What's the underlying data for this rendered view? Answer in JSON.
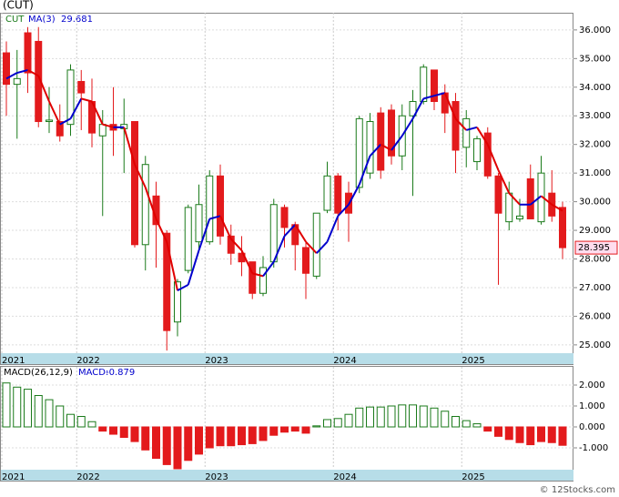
{
  "chart_data": [
    {
      "type": "candlestick",
      "title": "(CUT)",
      "symbol": "CUT",
      "categories": [
        "2021",
        null,
        null,
        null,
        null,
        null,
        null,
        "2022",
        null,
        null,
        null,
        null,
        null,
        null,
        null,
        null,
        null,
        null,
        null,
        "2023",
        null,
        null,
        null,
        null,
        null,
        null,
        null,
        null,
        null,
        null,
        null,
        "2024",
        null,
        null,
        null,
        null,
        null,
        null,
        null,
        null,
        null,
        null,
        null,
        "2025",
        null,
        null,
        null,
        null,
        null,
        null,
        null,
        null,
        null
      ],
      "open": [
        35.2,
        34.1,
        35.9,
        35.6,
        32.8,
        32.8,
        32.7,
        34.2,
        33.5,
        32.3,
        32.7,
        32.55,
        32.8,
        28.5,
        30.2,
        28.9,
        25.8,
        27.6,
        28.6,
        28.6,
        30.9,
        28.8,
        28.2,
        27.9,
        26.8,
        27.9,
        29.8,
        29.2,
        28.4,
        27.4,
        29.7,
        30.9,
        30.3,
        30.5,
        31.0,
        33.1,
        33.2,
        31.6,
        33.0,
        33.5,
        34.6,
        33.8,
        33.5,
        31.9,
        31.4,
        32.4,
        30.9,
        29.3,
        29.4,
        30.8,
        29.3,
        30.3,
        29.8
      ],
      "high": [
        35.6,
        35.3,
        36.1,
        36.1,
        34.0,
        33.4,
        34.8,
        34.6,
        34.3,
        33.2,
        34.0,
        33.6,
        32.8,
        31.6,
        30.7,
        29.0,
        27.3,
        29.9,
        30.6,
        31.1,
        31.3,
        29.2,
        28.8,
        27.9,
        28.1,
        30.1,
        29.9,
        29.3,
        28.6,
        29.6,
        31.4,
        31.0,
        30.7,
        33.0,
        33.1,
        33.3,
        33.4,
        33.4,
        33.9,
        34.8,
        34.6,
        34.1,
        33.8,
        33.2,
        32.3,
        32.6,
        31.0,
        30.7,
        30.1,
        31.3,
        31.6,
        31.1,
        30.0
      ],
      "low": [
        33.0,
        32.2,
        33.8,
        32.6,
        32.4,
        32.1,
        32.3,
        32.5,
        31.9,
        29.5,
        31.6,
        31.0,
        28.4,
        27.6,
        27.7,
        24.8,
        25.3,
        27.5,
        28.3,
        28.5,
        28.5,
        27.8,
        27.4,
        26.6,
        26.7,
        27.7,
        28.4,
        27.6,
        26.6,
        27.3,
        29.6,
        29.0,
        28.6,
        30.3,
        30.8,
        30.8,
        31.3,
        31.1,
        30.2,
        33.4,
        33.2,
        32.4,
        31.0,
        31.2,
        31.1,
        30.8,
        27.1,
        29.0,
        29.3,
        29.4,
        29.2,
        29.3,
        28.0
      ],
      "close": [
        34.1,
        34.3,
        34.5,
        32.8,
        32.85,
        32.3,
        34.6,
        33.8,
        32.4,
        32.7,
        32.5,
        32.7,
        28.5,
        31.3,
        29.2,
        25.5,
        27.2,
        29.8,
        29.9,
        30.9,
        28.8,
        28.2,
        27.9,
        26.8,
        27.7,
        29.9,
        29.1,
        28.5,
        27.5,
        29.6,
        30.9,
        29.6,
        29.6,
        32.9,
        32.8,
        31.1,
        31.6,
        33.0,
        33.5,
        34.7,
        33.5,
        33.1,
        31.8,
        32.9,
        32.2,
        30.9,
        29.6,
        30.3,
        29.5,
        29.4,
        31.0,
        29.5,
        28.395
      ],
      "ma": {
        "name": "MA(3)",
        "up_color": "#0000cc",
        "down_color": "#e00000",
        "values": [
          34.3,
          34.5,
          34.6,
          34.4,
          33.5,
          32.7,
          32.9,
          33.6,
          33.5,
          32.7,
          32.6,
          32.6,
          31.3,
          30.5,
          29.4,
          28.6,
          26.9,
          27.1,
          28.3,
          29.4,
          29.5,
          28.7,
          28.3,
          27.5,
          27.4,
          27.9,
          28.8,
          29.2,
          28.6,
          28.2,
          28.6,
          29.5,
          29.9,
          30.6,
          31.6,
          32.0,
          31.8,
          32.3,
          32.9,
          33.6,
          33.7,
          33.8,
          32.9,
          32.5,
          32.6,
          32.0,
          31.1,
          30.3,
          29.9,
          29.9,
          30.2,
          29.9,
          29.681
        ]
      },
      "up_color": "#1a7a1a",
      "down_color": "#e31a1c",
      "ylim": [
        24.71,
        36.6
      ],
      "yticks": [
        {
          "value": 25,
          "label": "25.000"
        },
        {
          "value": 26,
          "label": "26.000"
        },
        {
          "value": 27,
          "label": "27.000"
        },
        {
          "value": 28,
          "label": "28.000"
        },
        {
          "value": 29,
          "label": "29.000"
        },
        {
          "value": 30,
          "label": "30.000"
        },
        {
          "value": 31,
          "label": "31.000"
        },
        {
          "value": 32,
          "label": "32.000"
        },
        {
          "value": 33,
          "label": "33.000"
        },
        {
          "value": 34,
          "label": "34.000"
        },
        {
          "value": 35,
          "label": "35.000"
        },
        {
          "value": 36,
          "label": "36.000"
        }
      ],
      "grid": true
    },
    {
      "type": "bar",
      "title": "MACD(26,12,9)",
      "value_title": "MACD:",
      "categories": [
        "2021",
        null,
        null,
        null,
        null,
        null,
        null,
        "2022",
        null,
        null,
        null,
        null,
        null,
        null,
        null,
        null,
        null,
        null,
        null,
        "2023",
        null,
        null,
        null,
        null,
        null,
        null,
        null,
        null,
        null,
        null,
        null,
        "2024",
        null,
        null,
        null,
        null,
        null,
        null,
        null,
        null,
        null,
        null,
        null,
        "2025",
        null,
        null,
        null,
        null,
        null,
        null,
        null,
        null,
        null
      ],
      "values": [
        2.1,
        1.9,
        1.8,
        1.5,
        1.3,
        1.0,
        0.6,
        0.5,
        0.25,
        -0.2,
        -0.35,
        -0.5,
        -0.7,
        -1.1,
        -1.5,
        -1.8,
        -2.0,
        -1.6,
        -1.3,
        -1.0,
        -0.9,
        -0.9,
        -0.85,
        -0.8,
        -0.65,
        -0.4,
        -0.25,
        -0.2,
        -0.3,
        0.05,
        0.35,
        0.4,
        0.6,
        0.9,
        0.95,
        0.95,
        1.0,
        1.05,
        1.05,
        1.0,
        0.9,
        0.75,
        0.5,
        0.3,
        0.15,
        -0.2,
        -0.45,
        -0.6,
        -0.75,
        -0.85,
        -0.7,
        -0.75,
        -0.879
      ],
      "up_color": "#1a7a1a",
      "down_color": "#e31a1c",
      "ylim": [
        -2.0,
        2.87
      ],
      "yticks": [
        {
          "value": -1,
          "label": "-1.000"
        },
        {
          "value": 0,
          "label": "0.000"
        },
        {
          "value": 1,
          "label": "1.000"
        },
        {
          "value": 2,
          "label": "2.000"
        }
      ],
      "grid": true
    }
  ],
  "footer": "© 12Stocks.com"
}
